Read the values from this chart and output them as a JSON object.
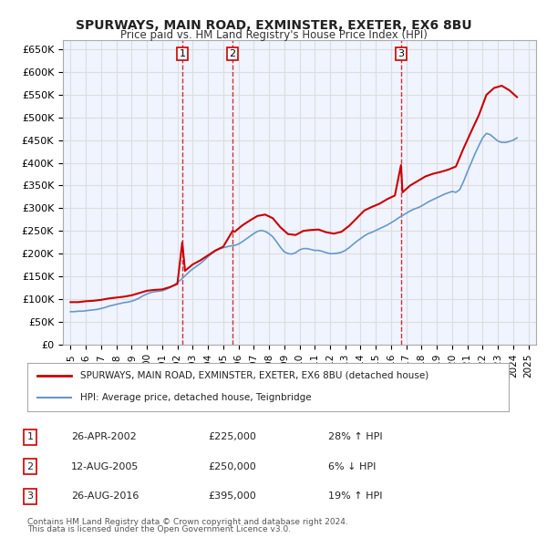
{
  "title": "SPURWAYS, MAIN ROAD, EXMINSTER, EXETER, EX6 8BU",
  "subtitle": "Price paid vs. HM Land Registry's House Price Index (HPI)",
  "legend_line1": "SPURWAYS, MAIN ROAD, EXMINSTER, EXETER, EX6 8BU (detached house)",
  "legend_line2": "HPI: Average price, detached house, Teignbridge",
  "transactions": [
    {
      "num": 1,
      "date": "26-APR-2002",
      "price": 225000,
      "pct": "28%",
      "dir": "↑",
      "x": 2002.32
    },
    {
      "num": 2,
      "date": "12-AUG-2005",
      "price": 250000,
      "pct": "6%",
      "dir": "↓",
      "x": 2005.62
    },
    {
      "num": 3,
      "date": "26-AUG-2016",
      "price": 395000,
      "pct": "19%",
      "dir": "↑",
      "x": 2016.65
    }
  ],
  "footer1": "Contains HM Land Registry data © Crown copyright and database right 2024.",
  "footer2": "This data is licensed under the Open Government Licence v3.0.",
  "hpi_data": {
    "x": [
      1995.0,
      1995.25,
      1995.5,
      1995.75,
      1996.0,
      1996.25,
      1996.5,
      1996.75,
      1997.0,
      1997.25,
      1997.5,
      1997.75,
      1998.0,
      1998.25,
      1998.5,
      1998.75,
      1999.0,
      1999.25,
      1999.5,
      1999.75,
      2000.0,
      2000.25,
      2000.5,
      2000.75,
      2001.0,
      2001.25,
      2001.5,
      2001.75,
      2002.0,
      2002.25,
      2002.5,
      2002.75,
      2003.0,
      2003.25,
      2003.5,
      2003.75,
      2004.0,
      2004.25,
      2004.5,
      2004.75,
      2005.0,
      2005.25,
      2005.5,
      2005.75,
      2006.0,
      2006.25,
      2006.5,
      2006.75,
      2007.0,
      2007.25,
      2007.5,
      2007.75,
      2008.0,
      2008.25,
      2008.5,
      2008.75,
      2009.0,
      2009.25,
      2009.5,
      2009.75,
      2010.0,
      2010.25,
      2010.5,
      2010.75,
      2011.0,
      2011.25,
      2011.5,
      2011.75,
      2012.0,
      2012.25,
      2012.5,
      2012.75,
      2013.0,
      2013.25,
      2013.5,
      2013.75,
      2014.0,
      2014.25,
      2014.5,
      2014.75,
      2015.0,
      2015.25,
      2015.5,
      2015.75,
      2016.0,
      2016.25,
      2016.5,
      2016.75,
      2017.0,
      2017.25,
      2017.5,
      2017.75,
      2018.0,
      2018.25,
      2018.5,
      2018.75,
      2019.0,
      2019.25,
      2019.5,
      2019.75,
      2020.0,
      2020.25,
      2020.5,
      2020.75,
      2021.0,
      2021.25,
      2021.5,
      2021.75,
      2022.0,
      2022.25,
      2022.5,
      2022.75,
      2023.0,
      2023.25,
      2023.5,
      2023.75,
      2024.0,
      2024.25
    ],
    "y": [
      72000,
      72000,
      73000,
      73000,
      74000,
      75000,
      76000,
      77000,
      79000,
      81000,
      84000,
      86000,
      88000,
      90000,
      92000,
      93000,
      95000,
      98000,
      102000,
      107000,
      111000,
      114000,
      116000,
      117000,
      118000,
      121000,
      125000,
      130000,
      136000,
      143000,
      151000,
      159000,
      166000,
      172000,
      178000,
      185000,
      193000,
      200000,
      206000,
      210000,
      213000,
      215000,
      217000,
      218000,
      221000,
      226000,
      232000,
      238000,
      244000,
      249000,
      251000,
      249000,
      244000,
      237000,
      226000,
      214000,
      204000,
      200000,
      199000,
      202000,
      208000,
      211000,
      211000,
      209000,
      207000,
      207000,
      205000,
      202000,
      200000,
      200000,
      201000,
      203000,
      207000,
      213000,
      220000,
      227000,
      233000,
      239000,
      244000,
      247000,
      251000,
      255000,
      259000,
      263000,
      268000,
      273000,
      279000,
      284000,
      289000,
      294000,
      298000,
      301000,
      305000,
      310000,
      315000,
      319000,
      323000,
      327000,
      331000,
      334000,
      337000,
      335000,
      341000,
      359000,
      380000,
      400000,
      420000,
      438000,
      455000,
      465000,
      462000,
      455000,
      448000,
      445000,
      445000,
      447000,
      450000,
      455000
    ]
  },
  "price_data": {
    "x": [
      1995.0,
      1995.5,
      1996.0,
      1996.5,
      1997.0,
      1997.5,
      1998.0,
      1998.5,
      1999.0,
      1999.5,
      2000.0,
      2000.5,
      2001.0,
      2001.5,
      2002.0,
      2002.32,
      2002.5,
      2003.0,
      2003.5,
      2004.0,
      2004.5,
      2005.0,
      2005.62,
      2005.75,
      2006.25,
      2006.75,
      2007.25,
      2007.75,
      2008.25,
      2008.75,
      2009.25,
      2009.75,
      2010.25,
      2010.75,
      2011.25,
      2011.75,
      2012.25,
      2012.75,
      2013.25,
      2013.75,
      2014.25,
      2014.75,
      2015.25,
      2015.75,
      2016.25,
      2016.65,
      2016.75,
      2017.25,
      2017.75,
      2018.25,
      2018.75,
      2019.25,
      2019.75,
      2020.25,
      2020.75,
      2021.25,
      2021.75,
      2022.25,
      2022.75,
      2023.25,
      2023.75,
      2024.25
    ],
    "y": [
      93000,
      93000,
      95000,
      96000,
      98000,
      101000,
      103000,
      105000,
      108000,
      113000,
      118000,
      120000,
      121000,
      126000,
      133000,
      225000,
      162000,
      176000,
      185000,
      196000,
      207000,
      215000,
      250000,
      248000,
      262000,
      273000,
      283000,
      286000,
      278000,
      258000,
      243000,
      241000,
      250000,
      252000,
      253000,
      247000,
      244000,
      248000,
      261000,
      278000,
      295000,
      303000,
      310000,
      320000,
      328000,
      395000,
      335000,
      350000,
      360000,
      370000,
      376000,
      380000,
      385000,
      392000,
      432000,
      469000,
      505000,
      550000,
      565000,
      570000,
      560000,
      545000
    ]
  },
  "ylim": [
    0,
    670000
  ],
  "yticks": [
    0,
    50000,
    100000,
    150000,
    200000,
    250000,
    300000,
    350000,
    400000,
    450000,
    500000,
    550000,
    600000,
    650000
  ],
  "ytick_labels": [
    "£0",
    "£50K",
    "£100K",
    "£150K",
    "£200K",
    "£250K",
    "£300K",
    "£350K",
    "£400K",
    "£450K",
    "£500K",
    "£550K",
    "£600K",
    "£650K"
  ],
  "xlim": [
    1994.5,
    2025.5
  ],
  "xticks": [
    1995,
    1996,
    1997,
    1998,
    1999,
    2000,
    2001,
    2002,
    2003,
    2004,
    2005,
    2006,
    2007,
    2008,
    2009,
    2010,
    2011,
    2012,
    2013,
    2014,
    2015,
    2016,
    2017,
    2018,
    2019,
    2020,
    2021,
    2022,
    2023,
    2024,
    2025
  ],
  "red_color": "#cc0000",
  "blue_color": "#6699cc",
  "vline_color": "#cc0000",
  "grid_color": "#dddddd",
  "bg_color": "#ffffff",
  "plot_bg_color": "#f0f4ff"
}
